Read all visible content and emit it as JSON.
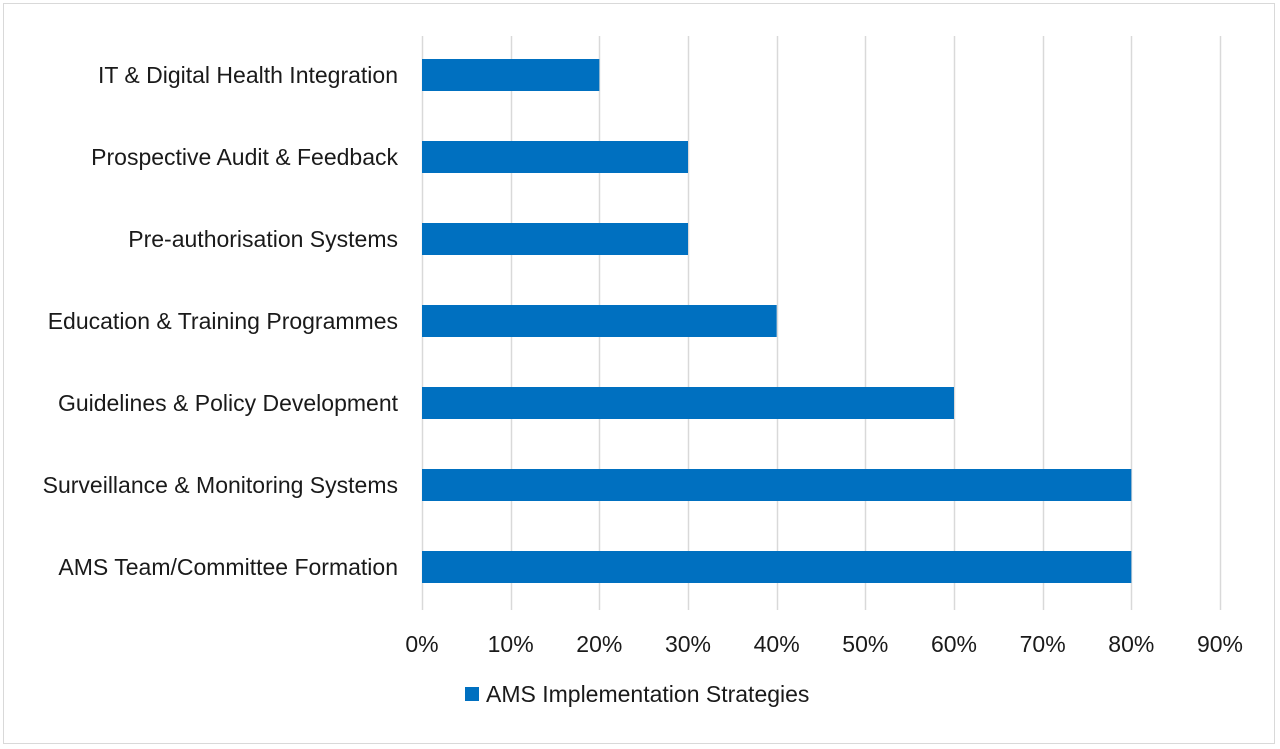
{
  "chart_data": {
    "type": "bar",
    "orientation": "horizontal",
    "categories": [
      "IT & Digital Health Integration",
      "Prospective Audit & Feedback",
      "Pre-authorisation Systems",
      "Education & Training Programmes",
      "Guidelines & Policy Development",
      "Surveillance & Monitoring Systems",
      "AMS Team/Committee Formation"
    ],
    "series": [
      {
        "name": "AMS Implementation Strategies",
        "values": [
          20,
          30,
          30,
          40,
          60,
          80,
          80
        ],
        "color": "#0070c0"
      }
    ],
    "xlim": [
      0,
      90
    ],
    "xticks": [
      0,
      10,
      20,
      30,
      40,
      50,
      60,
      70,
      80,
      90
    ],
    "tick_suffix": "%",
    "grid": "vertical",
    "legend_position": "bottom",
    "title": "",
    "xlabel": "",
    "ylabel": ""
  }
}
